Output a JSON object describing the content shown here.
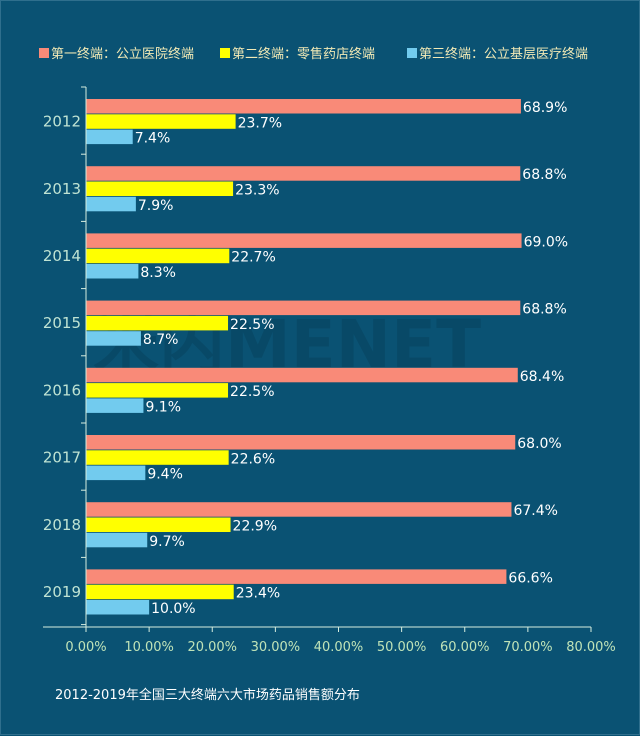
{
  "chart_data": {
    "type": "bar",
    "orientation": "horizontal",
    "categories": [
      "2012",
      "2013",
      "2014",
      "2015",
      "2016",
      "2017",
      "2018",
      "2019"
    ],
    "series": [
      {
        "name": "第一终端：公立医院终端",
        "color": "#f98a78",
        "values": [
          68.9,
          68.8,
          69.0,
          68.8,
          68.4,
          68.0,
          67.4,
          66.6
        ],
        "labels": [
          "68.9%",
          "68.8%",
          "69.0%",
          "68.8%",
          "68.4%",
          "68.0%",
          "67.4%",
          "66.6%"
        ]
      },
      {
        "name": "第二终端：零售药店终端",
        "color": "#ffff00",
        "values": [
          23.7,
          23.3,
          22.7,
          22.5,
          22.5,
          22.6,
          22.9,
          23.4
        ],
        "labels": [
          "23.7%",
          "23.3%",
          "22.7%",
          "22.5%",
          "22.5%",
          "22.6%",
          "22.9%",
          "23.4%"
        ]
      },
      {
        "name": "第三终端：公立基层医疗终端",
        "color": "#72cbee",
        "values": [
          7.4,
          7.9,
          8.3,
          8.7,
          9.1,
          9.4,
          9.7,
          10.0
        ],
        "labels": [
          "7.4%",
          "7.9%",
          "8.3%",
          "8.7%",
          "9.1%",
          "9.4%",
          "9.7%",
          "10.0%"
        ]
      }
    ],
    "xlim": [
      0,
      80
    ],
    "x_ticks": [
      "0.00%",
      "10.00%",
      "20.00%",
      "30.00%",
      "40.00%",
      "50.00%",
      "60.00%",
      "70.00%",
      "80.00%"
    ],
    "grid": false,
    "legend_position": "top",
    "caption": "2012-2019年全国三大终端六大市场药品销售额分布",
    "watermark": "米内MENET"
  },
  "colors": {
    "background": "#0a5273",
    "axis": "#d7eedf"
  }
}
